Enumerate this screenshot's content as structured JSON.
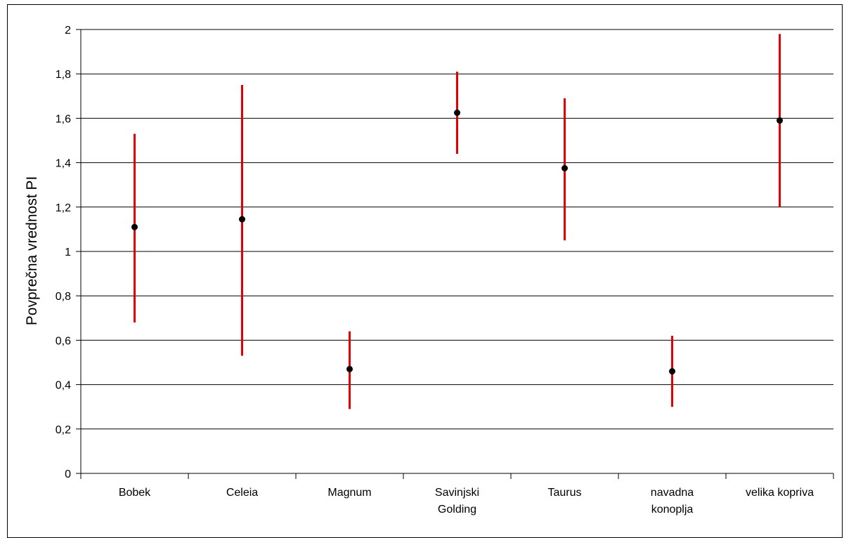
{
  "chart_data": {
    "type": "scatter",
    "ylabel": "Povprečna vrednost PI",
    "xlabel": "",
    "ylim": [
      0,
      2
    ],
    "yticks": [
      "0",
      "0,2",
      "0,4",
      "0,6",
      "0,8",
      "1",
      "1,2",
      "1,4",
      "1,6",
      "1,8",
      "2"
    ],
    "grid": true,
    "categories": [
      [
        "Bobek"
      ],
      [
        "Celeia"
      ],
      [
        "Magnum"
      ],
      [
        "Savinjski",
        "Golding"
      ],
      [
        "Taurus"
      ],
      [
        "navadna",
        "konoplja"
      ],
      [
        "velika kopriva"
      ]
    ],
    "series": [
      {
        "values": [
          1.11,
          1.145,
          0.47,
          1.625,
          1.375,
          0.46,
          1.59
        ],
        "low": [
          0.68,
          0.53,
          0.29,
          1.44,
          1.05,
          0.3,
          1.2
        ],
        "high": [
          1.53,
          1.75,
          0.64,
          1.81,
          1.69,
          0.62,
          1.98
        ]
      }
    ],
    "colors": {
      "errorbar": "#e00000",
      "point": "#000000",
      "grid": "#000000"
    }
  }
}
